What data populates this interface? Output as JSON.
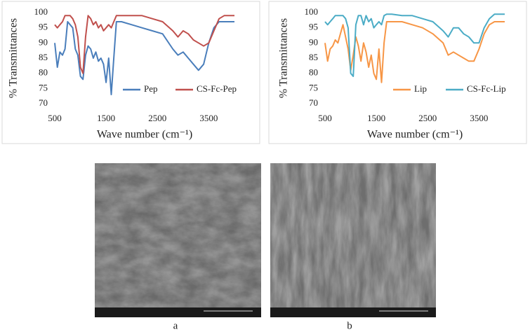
{
  "chart_data": [
    {
      "type": "line",
      "y_label": "% Transmittances",
      "x_label": "Wave number (cm⁻¹)",
      "x": [
        500,
        550,
        600,
        650,
        700,
        750,
        800,
        850,
        900,
        950,
        1000,
        1050,
        1100,
        1150,
        1200,
        1250,
        1300,
        1350,
        1400,
        1450,
        1500,
        1550,
        1600,
        1650,
        1700,
        1800,
        2000,
        2200,
        2400,
        2600,
        2800,
        2900,
        3000,
        3100,
        3200,
        3300,
        3400,
        3500,
        3600,
        3700,
        3800,
        4000
      ],
      "series": [
        {
          "name": "Pep",
          "color": "#4a7ebb",
          "values": [
            90,
            82,
            87,
            86,
            88,
            97,
            96,
            95,
            88,
            86,
            79,
            78,
            86,
            89,
            88,
            85,
            87,
            84,
            85,
            83,
            77,
            85,
            73,
            85,
            97,
            97,
            96,
            95,
            94,
            93,
            88,
            86,
            87,
            85,
            83,
            81,
            83,
            90,
            95,
            97,
            97,
            97
          ]
        },
        {
          "name": "CS-Fc-Pep",
          "color": "#c0504d",
          "values": [
            96,
            95,
            96,
            97,
            99,
            99,
            99,
            98,
            96,
            92,
            82,
            80,
            92,
            99,
            98,
            96,
            97,
            95,
            96,
            94,
            95,
            96,
            95,
            97,
            99,
            99,
            99,
            99,
            98,
            97,
            94,
            92,
            94,
            93,
            91,
            90,
            89,
            90,
            94,
            98,
            99,
            99
          ]
        }
      ],
      "xlim": [
        500,
        4000
      ],
      "ylim": [
        70,
        100
      ],
      "xticks": [
        500,
        1500,
        2500,
        3500
      ],
      "yticks": [
        70,
        75,
        80,
        85,
        90,
        95,
        100
      ],
      "grid": false,
      "legend": "bottom"
    },
    {
      "type": "line",
      "y_label": "% Transmittances",
      "x_label": "Wave number (cm⁻¹)",
      "x": [
        500,
        550,
        600,
        650,
        700,
        750,
        800,
        850,
        900,
        950,
        1000,
        1050,
        1100,
        1150,
        1200,
        1250,
        1300,
        1350,
        1400,
        1450,
        1500,
        1550,
        1600,
        1650,
        1700,
        1800,
        2000,
        2200,
        2400,
        2600,
        2800,
        2900,
        3000,
        3100,
        3200,
        3300,
        3400,
        3500,
        3600,
        3700,
        3800,
        4000
      ],
      "series": [
        {
          "name": "Lip",
          "color": "#f79646",
          "values": [
            90,
            84,
            88,
            89,
            91,
            90,
            93,
            96,
            92,
            88,
            81,
            86,
            92,
            89,
            84,
            90,
            87,
            82,
            86,
            80,
            78,
            88,
            77,
            90,
            97,
            97,
            97,
            96,
            95,
            93,
            90,
            86,
            87,
            86,
            85,
            84,
            84,
            88,
            93,
            96,
            97,
            97
          ]
        },
        {
          "name": "CS-Fc-Lip",
          "color": "#4bacc6",
          "values": [
            97,
            96,
            97,
            98,
            99,
            99,
            99,
            99,
            98,
            95,
            80,
            79,
            96,
            99,
            99,
            96,
            99,
            97,
            98,
            95,
            96,
            97,
            96,
            99,
            99.5,
            99.5,
            99,
            99,
            98,
            97,
            94,
            92,
            95,
            95,
            93,
            92,
            90,
            90,
            95,
            98,
            99.5,
            99.5
          ]
        }
      ],
      "xlim": [
        500,
        4000
      ],
      "ylim": [
        70,
        100
      ],
      "xticks": [
        500,
        1500,
        2500,
        3500
      ],
      "yticks": [
        70,
        75,
        80,
        85,
        90,
        95,
        100
      ],
      "grid": false,
      "legend": "bottom"
    }
  ],
  "panels": [
    {
      "label": "a"
    },
    {
      "label": "b"
    }
  ]
}
